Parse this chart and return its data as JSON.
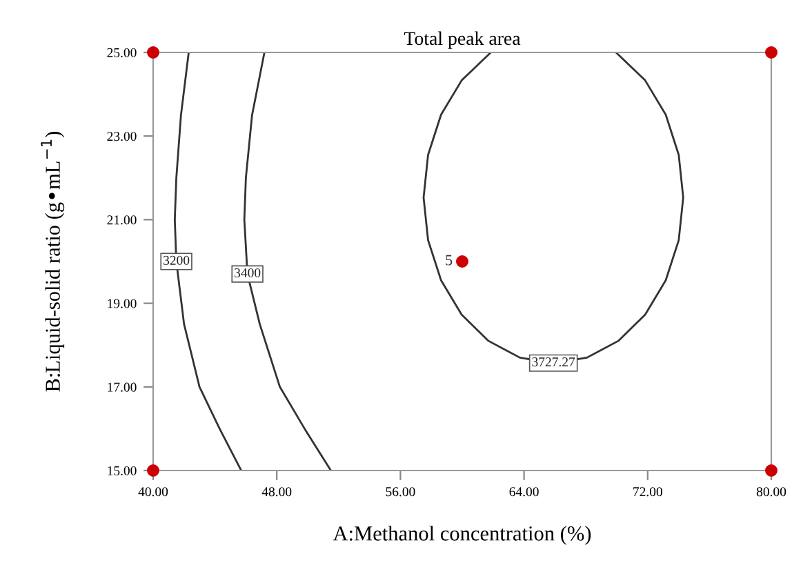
{
  "chart_data": {
    "type": "line",
    "title": "Total peak area",
    "xlabel": "A:Methanol concentration (%)",
    "ylabel": "B:Liquid-solid ratio (g•mL$^{−1}$)",
    "xlim": [
      40,
      80
    ],
    "ylim": [
      15,
      25
    ],
    "xticks": [
      {
        "value": 40,
        "label": "40.00"
      },
      {
        "value": 48,
        "label": "48.00"
      },
      {
        "value": 56,
        "label": "56.00"
      },
      {
        "value": 64,
        "label": "64.00"
      },
      {
        "value": 72,
        "label": "72.00"
      },
      {
        "value": 80,
        "label": "80.00"
      }
    ],
    "yticks": [
      {
        "value": 15,
        "label": "15.00"
      },
      {
        "value": 17,
        "label": "17.00"
      },
      {
        "value": 19,
        "label": "19.00"
      },
      {
        "value": 21,
        "label": "21.00"
      },
      {
        "value": 23,
        "label": "23.00"
      },
      {
        "value": 25,
        "label": "25.00"
      }
    ],
    "grid": false,
    "legend": false,
    "line_style": "solid",
    "series": [
      {
        "name": "3200",
        "color": "#333333",
        "x": [
          42.3,
          41.8,
          41.5,
          41.4,
          41.5,
          42.0,
          43.0,
          44.3,
          45.7
        ],
        "values": [
          25,
          23.5,
          22,
          21,
          20,
          18.5,
          17,
          16,
          15
        ]
      },
      {
        "name": "3400",
        "color": "#333333",
        "x": [
          47.2,
          46.4,
          46.0,
          45.9,
          46.1,
          46.9,
          48.2,
          49.8,
          51.5
        ],
        "values": [
          25,
          23.5,
          22,
          21,
          19.7,
          18.5,
          17,
          16,
          15
        ]
      },
      {
        "name": "3727.27",
        "color": "#333333",
        "x": [
          61.85,
          59.96,
          58.63,
          57.79,
          57.5,
          57.79,
          58.63,
          59.96,
          61.7,
          63.73,
          65.9,
          68.07,
          70.1,
          71.84,
          73.17,
          74.01,
          74.3,
          74.01,
          73.17,
          71.84,
          69.95
        ],
        "values": [
          25.0,
          24.33,
          23.51,
          22.55,
          21.53,
          20.51,
          19.55,
          18.73,
          18.1,
          17.7,
          17.57,
          17.7,
          18.1,
          18.73,
          19.55,
          20.51,
          21.53,
          22.55,
          23.51,
          24.33,
          25.0
        ]
      },
      {
        "type": "scatter",
        "marker": "circle",
        "color": "#cc0000",
        "x": [
          40,
          40,
          80,
          80,
          60
        ],
        "values": [
          15,
          25,
          15,
          25,
          20
        ]
      }
    ],
    "annotations": [
      {
        "text": "5",
        "x": 60,
        "y": 20
      }
    ]
  }
}
